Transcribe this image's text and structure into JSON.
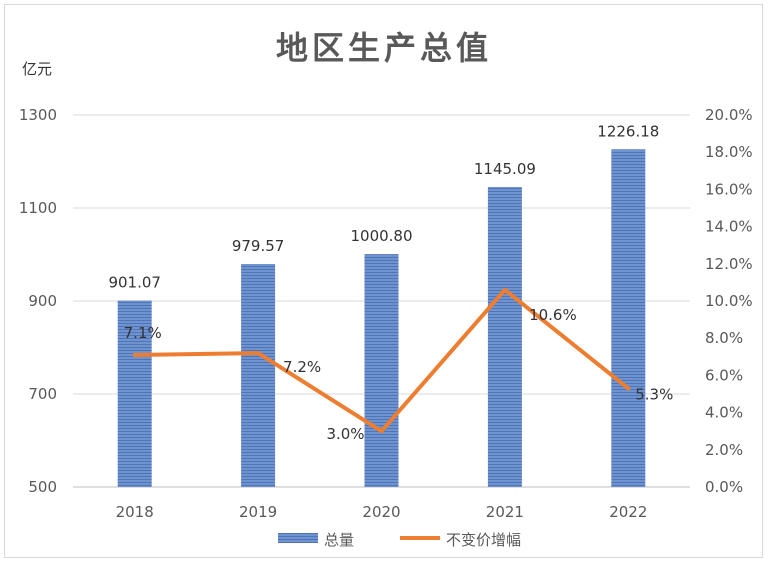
{
  "chart_data": {
    "type": "bar+line",
    "title": "地区生产总值",
    "ylabel_left": "亿元",
    "categories": [
      "2018",
      "2019",
      "2020",
      "2021",
      "2022"
    ],
    "series": [
      {
        "name": "总量",
        "type": "bar",
        "axis": "left",
        "values": [
          901.07,
          979.57,
          1000.8,
          1145.09,
          1226.18
        ],
        "labels": [
          "901.07",
          "979.57",
          "1000.80",
          "1145.09",
          "1226.18"
        ],
        "color": "#5b84c4"
      },
      {
        "name": "不变价增幅",
        "type": "line",
        "axis": "right",
        "values": [
          7.1,
          7.2,
          3.0,
          10.6,
          5.3
        ],
        "labels": [
          "7.1%",
          "7.2%",
          "3.0%",
          "10.6%",
          "5.3%"
        ],
        "color": "#ed7d31"
      }
    ],
    "y_left": {
      "min": 500,
      "max": 1300,
      "ticks": [
        "500",
        "700",
        "900",
        "1100",
        "1300"
      ]
    },
    "y_right": {
      "min": 0,
      "max": 20,
      "ticks": [
        "0.0%",
        "2.0%",
        "4.0%",
        "6.0%",
        "8.0%",
        "10.0%",
        "12.0%",
        "14.0%",
        "16.0%",
        "18.0%",
        "20.0%"
      ]
    },
    "grid": true,
    "legend": "bottom"
  }
}
